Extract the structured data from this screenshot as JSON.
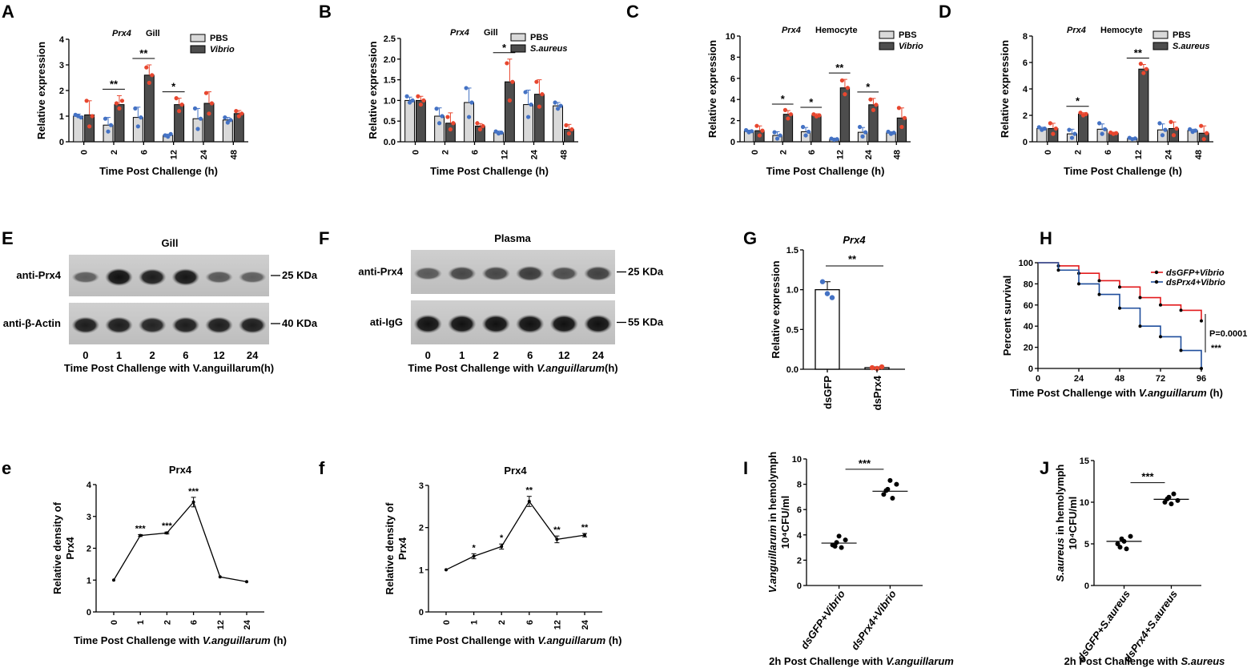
{
  "panel_letters": [
    "A",
    "B",
    "C",
    "D",
    "E",
    "F",
    "G",
    "H",
    "e",
    "f",
    "I",
    "J"
  ],
  "colors": {
    "pbs": "#d9d9d9",
    "treat": "#4d4d4d",
    "dot_pbs": "#4472c4",
    "dot_treat": "#e8472f",
    "curve_ctrl": "#e31a1c",
    "curve_ko": "#1f4e9c"
  },
  "chart_data": [
    {
      "id": "A",
      "type": "bar",
      "title_gene": "Prx4",
      "title_tissue": "Gill",
      "categories": [
        "0",
        "2",
        "6",
        "12",
        "24",
        "48"
      ],
      "ylabel": "Relative expression",
      "xlabel": "Time Post  Challenge (h)",
      "ylim": [
        0,
        4
      ],
      "yticks": [
        "0",
        "1",
        "2",
        "3",
        "4"
      ],
      "legend": [
        "PBS",
        "Vibrio"
      ],
      "series": [
        {
          "name": "PBS",
          "values": [
            1.0,
            0.65,
            0.95,
            0.25,
            0.9,
            0.85
          ],
          "err": [
            0.08,
            0.3,
            0.4,
            0.05,
            0.4,
            0.1
          ],
          "dots": [
            [
              1.05,
              1.0,
              0.95
            ],
            [
              0.9,
              0.4,
              0.65
            ],
            [
              1.3,
              0.6,
              0.95
            ],
            [
              0.25,
              0.2,
              0.3
            ],
            [
              1.3,
              0.5,
              0.9
            ],
            [
              0.95,
              0.75,
              0.85
            ]
          ]
        },
        {
          "name": "Vibrio",
          "values": [
            1.05,
            1.45,
            2.6,
            1.45,
            1.5,
            1.1
          ],
          "err": [
            0.55,
            0.35,
            0.4,
            0.25,
            0.45,
            0.12
          ],
          "dots": [
            [
              1.6,
              0.6,
              1.0
            ],
            [
              1.5,
              1.3,
              1.6
            ],
            [
              2.9,
              2.3,
              2.6
            ],
            [
              1.7,
              1.2,
              1.45
            ],
            [
              1.9,
              1.1,
              1.5
            ],
            [
              1.2,
              1.0,
              1.1
            ]
          ]
        }
      ],
      "sig": [
        {
          "i": 1,
          "label": "**"
        },
        {
          "i": 2,
          "label": "**"
        },
        {
          "i": 3,
          "label": "*"
        }
      ]
    },
    {
      "id": "B",
      "type": "bar",
      "title_gene": "Prx4",
      "title_tissue": "Gill",
      "categories": [
        "0",
        "2",
        "6",
        "12",
        "24",
        "48"
      ],
      "ylabel": "Relative expression",
      "xlabel": "Time Post  Challenge (h)",
      "ylim": [
        0,
        2.5
      ],
      "yticks": [
        "0.0",
        "0.5",
        "1.0",
        "1.5",
        "2.0",
        "2.5"
      ],
      "legend": [
        "PBS",
        "S.aureus"
      ],
      "series": [
        {
          "name": "PBS",
          "values": [
            1.0,
            0.62,
            0.95,
            0.22,
            0.9,
            0.87
          ],
          "err": [
            0.08,
            0.2,
            0.35,
            0.04,
            0.35,
            0.08
          ],
          "dots": [
            [
              1.1,
              0.95,
              1.0
            ],
            [
              0.8,
              0.45,
              0.62
            ],
            [
              1.3,
              0.6,
              0.95
            ],
            [
              0.25,
              0.2,
              0.22
            ],
            [
              1.2,
              0.6,
              0.9
            ],
            [
              0.95,
              0.8,
              0.87
            ]
          ]
        },
        {
          "name": "S.aureus",
          "values": [
            1.0,
            0.45,
            0.38,
            1.45,
            1.15,
            0.3
          ],
          "err": [
            0.1,
            0.25,
            0.06,
            0.55,
            0.35,
            0.12
          ],
          "dots": [
            [
              1.1,
              0.9,
              1.0
            ],
            [
              0.6,
              0.3,
              0.45
            ],
            [
              0.45,
              0.3,
              0.38
            ],
            [
              1.9,
              1.0,
              1.45
            ],
            [
              1.45,
              0.85,
              1.15
            ],
            [
              0.4,
              0.2,
              0.3
            ]
          ]
        }
      ],
      "sig": [
        {
          "i": 3,
          "label": "*"
        }
      ]
    },
    {
      "id": "C",
      "type": "bar",
      "title_gene": "Prx4",
      "title_tissue": "Hemocyte",
      "categories": [
        "0",
        "2",
        "6",
        "12",
        "24",
        "48"
      ],
      "ylabel": "Relative expression",
      "xlabel": "Time Post Challenge (h)",
      "ylim": [
        0,
        10
      ],
      "yticks": [
        "0",
        "2",
        "4",
        "6",
        "8",
        "10"
      ],
      "legend": [
        "PBS",
        "Vibrio"
      ],
      "series": [
        {
          "name": "PBS",
          "values": [
            1.0,
            0.6,
            0.95,
            0.25,
            0.9,
            0.85
          ],
          "err": [
            0.1,
            0.35,
            0.4,
            0.05,
            0.45,
            0.1
          ],
          "dots": [
            [
              1.1,
              0.9,
              1.0
            ],
            [
              0.9,
              0.3,
              0.6
            ],
            [
              1.4,
              0.6,
              0.95
            ],
            [
              0.3,
              0.2,
              0.25
            ],
            [
              1.4,
              0.5,
              0.9
            ],
            [
              0.95,
              0.75,
              0.85
            ]
          ]
        },
        {
          "name": "Vibrio",
          "values": [
            1.05,
            2.6,
            2.5,
            5.1,
            3.5,
            2.25
          ],
          "err": [
            0.45,
            0.35,
            0.15,
            0.8,
            0.6,
            0.95
          ],
          "dots": [
            [
              1.5,
              0.6,
              1.05
            ],
            [
              3.0,
              2.2,
              2.6
            ],
            [
              2.6,
              2.4,
              2.5
            ],
            [
              5.8,
              4.5,
              5.1
            ],
            [
              4.0,
              3.0,
              3.5
            ],
            [
              3.2,
              1.4,
              2.25
            ]
          ]
        }
      ],
      "sig": [
        {
          "i": 1,
          "label": "*"
        },
        {
          "i": 2,
          "label": "*"
        },
        {
          "i": 3,
          "label": "**"
        },
        {
          "i": 4,
          "label": "*"
        }
      ]
    },
    {
      "id": "D",
      "type": "bar",
      "title_gene": "Prx4",
      "title_tissue": "Hemocyte",
      "categories": [
        "0",
        "2",
        "6",
        "12",
        "24",
        "48"
      ],
      "ylabel": "Relative expression",
      "xlabel": "Time Post Challenge (h)",
      "ylim": [
        0,
        8
      ],
      "yticks": [
        "0",
        "2",
        "4",
        "6",
        "8"
      ],
      "legend": [
        "PBS",
        "S.aureus"
      ],
      "series": [
        {
          "name": "PBS",
          "values": [
            1.0,
            0.6,
            0.95,
            0.25,
            0.9,
            0.85
          ],
          "err": [
            0.1,
            0.35,
            0.4,
            0.05,
            0.45,
            0.1
          ],
          "dots": [
            [
              1.1,
              0.9,
              1.0
            ],
            [
              0.9,
              0.3,
              0.6
            ],
            [
              1.4,
              0.6,
              0.95
            ],
            [
              0.3,
              0.2,
              0.25
            ],
            [
              1.4,
              0.5,
              0.9
            ],
            [
              0.95,
              0.75,
              0.85
            ]
          ]
        },
        {
          "name": "S.aureus",
          "values": [
            1.0,
            2.1,
            0.65,
            5.5,
            1.0,
            0.65
          ],
          "err": [
            0.4,
            0.1,
            0.08,
            0.35,
            0.5,
            0.55
          ],
          "dots": [
            [
              1.4,
              0.6,
              1.0
            ],
            [
              2.2,
              2.0,
              2.1
            ],
            [
              0.7,
              0.6,
              0.65
            ],
            [
              5.9,
              5.2,
              5.5
            ],
            [
              1.5,
              0.5,
              1.0
            ],
            [
              1.2,
              0.2,
              0.65
            ]
          ]
        }
      ],
      "sig": [
        {
          "i": 1,
          "label": "*"
        },
        {
          "i": 3,
          "label": "**"
        }
      ]
    },
    {
      "id": "G",
      "type": "bar",
      "title": "Prx4",
      "categories": [
        "dsGFP",
        "dsPrx4"
      ],
      "ylabel": "Relative expression",
      "ylim": [
        0,
        1.5
      ],
      "yticks": [
        "0.0",
        "0.5",
        "1.0",
        "1.5"
      ],
      "values": [
        1.0,
        0.02
      ],
      "err": [
        0.1,
        0.01
      ],
      "dots": [
        [
          1.1,
          0.95,
          0.9
        ],
        [
          0.02,
          0.01,
          0.03
        ]
      ],
      "sig": "**"
    },
    {
      "id": "H",
      "type": "line",
      "ylabel": "Percent survival",
      "xlabel_pre": "Time Post  Challenge with ",
      "xlabel_italic": "V.anguillarum",
      "xlabel_post": " (h)",
      "xlim": [
        0,
        96
      ],
      "ylim": [
        0,
        100
      ],
      "xticks": [
        "0",
        "24",
        "48",
        "72",
        "96"
      ],
      "yticks": [
        "0",
        "20",
        "40",
        "60",
        "80",
        "100"
      ],
      "series": [
        {
          "name": "dsGFP+Vibrio",
          "x": [
            0,
            12,
            24,
            36,
            48,
            60,
            72,
            84,
            96
          ],
          "y": [
            100,
            97,
            90,
            83,
            77,
            67,
            60,
            55,
            45
          ]
        },
        {
          "name": "dsPrx4+Vibrio",
          "x": [
            0,
            12,
            24,
            36,
            48,
            60,
            72,
            84,
            96
          ],
          "y": [
            100,
            93,
            80,
            70,
            57,
            40,
            30,
            17,
            0
          ]
        }
      ],
      "pvalue": "P=0.0001",
      "stars": "***"
    },
    {
      "id": "e",
      "type": "line",
      "title": "Prx4",
      "ylabel": [
        "Relative density of",
        "Prx4"
      ],
      "categories": [
        "0",
        "1",
        "2",
        "6",
        "12",
        "24"
      ],
      "ylim": [
        0,
        4
      ],
      "yticks": [
        "0",
        "1",
        "2",
        "3",
        "4"
      ],
      "values": [
        1.0,
        2.4,
        2.48,
        3.45,
        1.1,
        0.95
      ],
      "err": [
        0,
        0.03,
        0.03,
        0.15,
        0,
        0
      ],
      "labels": [
        "",
        "***",
        "***",
        "***",
        "",
        ""
      ],
      "xlabel_pre": "Time Post Challenge with ",
      "xlabel_italic": "V.anguillarum",
      "xlabel_post": " (h)"
    },
    {
      "id": "f",
      "type": "line",
      "title": "Prx4",
      "ylabel": [
        "Relative density of",
        "Prx4"
      ],
      "categories": [
        "0",
        "1",
        "2",
        "6",
        "12",
        "24"
      ],
      "ylim": [
        0,
        3
      ],
      "yticks": [
        "0",
        "1",
        "2",
        "3"
      ],
      "values": [
        1.0,
        1.32,
        1.55,
        2.62,
        1.72,
        1.82
      ],
      "err": [
        0,
        0.06,
        0.06,
        0.12,
        0.08,
        0.04
      ],
      "labels": [
        "",
        "*",
        "*",
        "**",
        "**",
        "**"
      ],
      "xlabel_pre": "Time Post Challenge with ",
      "xlabel_italic": "V.anguillarum",
      "xlabel_post": " (h)"
    },
    {
      "id": "I",
      "type": "scatter",
      "ylabel_italic": "V.anguillarum",
      "ylabel_rest": " in hemolymph",
      "ylabel_unit": "10⁴CFU/ml",
      "categories": [
        "dsGFP+Vibrio",
        "dsPrx4+Vibrio"
      ],
      "ylim": [
        0,
        10
      ],
      "yticks": [
        "0",
        "2",
        "4",
        "6",
        "8",
        "10"
      ],
      "points": [
        [
          3.2,
          3.4,
          3.0,
          3.6,
          3.9,
          3.1
        ],
        [
          7.2,
          7.6,
          6.9,
          8.0,
          8.3,
          7.5
        ]
      ],
      "means": [
        3.35,
        7.45
      ],
      "sig": "***",
      "xlabel_pre": "2h Post  Challenge with ",
      "xlabel_italic": "V.anguillarum"
    },
    {
      "id": "J",
      "type": "scatter",
      "ylabel_italic": "S.aureus",
      "ylabel_rest": " in hemolymph",
      "ylabel_unit": "10⁴CFU/ml",
      "categories": [
        "dsGFP+S.aureus",
        "dsPrx4+S.aureus"
      ],
      "ylim": [
        0,
        15
      ],
      "yticks": [
        "0",
        "5",
        "10",
        "15"
      ],
      "points": [
        [
          5.0,
          5.6,
          4.4,
          5.9,
          5.3,
          4.6
        ],
        [
          10.0,
          10.6,
          11.0,
          10.2,
          9.8,
          10.4
        ]
      ],
      "means": [
        5.3,
        10.35
      ],
      "sig": "***",
      "xlabel_pre": "2h Post  Challenge with ",
      "xlabel_italic": "S.aureus"
    }
  ],
  "blots": [
    {
      "id": "E",
      "title": "Gill",
      "rows": [
        "anti-Prx4",
        "anti-β-Actin"
      ],
      "sizes": [
        "25 KDa",
        "40 KDa"
      ],
      "lanes": [
        "0",
        "1",
        "2",
        "6",
        "12",
        "24"
      ],
      "xlabel": "Time Post Challenge with V.anguillarum(h)"
    },
    {
      "id": "F",
      "title": "Plasma",
      "rows": [
        "anti-Prx4",
        "ati-IgG"
      ],
      "sizes": [
        "25 KDa",
        "55 KDa"
      ],
      "lanes": [
        "0",
        "1",
        "2",
        "6",
        "12",
        "24"
      ],
      "xlabel_pre": "Time Post Challenge with ",
      "xlabel_italic": "V.anguillarum",
      "xlabel_post": "(h)"
    }
  ]
}
